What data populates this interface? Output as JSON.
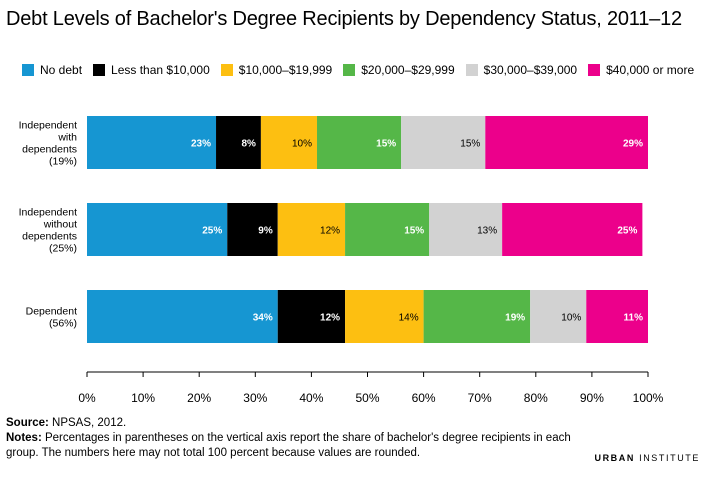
{
  "title": "Debt Levels of Bachelor's Degree Recipients by Dependency Status, 2011–12",
  "chart_data": {
    "type": "bar",
    "orientation": "horizontal",
    "stacked": true,
    "categories": [
      "Independent\nwith\ndependents\n(19%)",
      "Independent\nwithout\ndependents\n(25%)",
      "Dependent\n(56%)"
    ],
    "series": [
      {
        "name": "No debt",
        "color": "#1696d2",
        "values": [
          23,
          25,
          34
        ],
        "labels": [
          "23%",
          "25%",
          "34%"
        ],
        "label_color": "#ffffff"
      },
      {
        "name": "Less than $10,000",
        "color": "#000000",
        "values": [
          8,
          9,
          12
        ],
        "labels": [
          "8%",
          "9%",
          "12%"
        ],
        "label_color": "#ffffff"
      },
      {
        "name": "$10,000–$19,999",
        "color": "#fdbf11",
        "values": [
          10,
          12,
          14
        ],
        "labels": [
          "10%",
          "12%",
          "14%"
        ],
        "label_color": "#000000"
      },
      {
        "name": "$20,000–$29,999",
        "color": "#55b748",
        "values": [
          15,
          15,
          19
        ],
        "labels": [
          "15%",
          "15%",
          "19%"
        ],
        "label_color": "#ffffff"
      },
      {
        "name": "$30,000–$39,000",
        "color": "#d2d2d2",
        "values": [
          15,
          13,
          10
        ],
        "labels": [
          "15%",
          "13%",
          "10%"
        ],
        "label_color": "#000000"
      },
      {
        "name": "$40,000 or more",
        "color": "#ec008b",
        "values": [
          29,
          25,
          11
        ],
        "labels": [
          "29%",
          "25%",
          "11%"
        ],
        "label_color": "#ffffff"
      }
    ],
    "xlim": [
      0,
      100
    ],
    "xticks": [
      "0%",
      "10%",
      "20%",
      "30%",
      "40%",
      "50%",
      "60%",
      "70%",
      "80%",
      "90%",
      "100%"
    ],
    "grid": false,
    "legend_position": "top"
  },
  "footer": {
    "source_label": "Source:",
    "source_text": "NPSAS, 2012.",
    "notes_label": "Notes:",
    "notes_text": "Percentages in parentheses on the vertical axis report the share of bachelor's degree recipients in each group. The numbers here may not total 100 percent because values are rounded."
  },
  "logo": {
    "word1": "URBAN",
    "word2": "INSTITUTE"
  }
}
